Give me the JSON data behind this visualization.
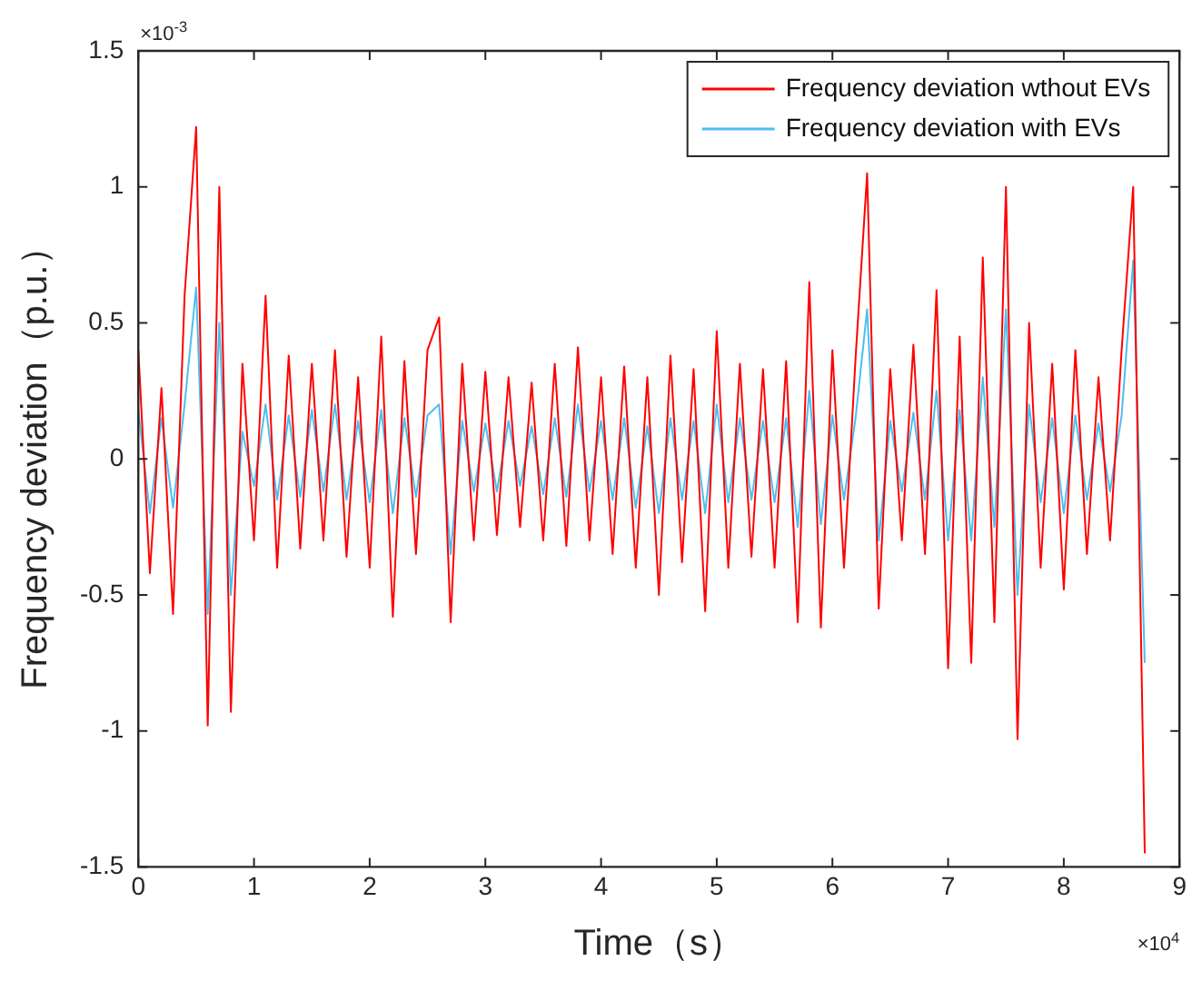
{
  "chart_data": {
    "type": "line",
    "xlabel": "Time（s）",
    "ylabel": "Frequency deviation（p.u.）",
    "x": [
      0,
      0.1,
      0.2,
      0.3,
      0.4,
      0.5,
      0.6,
      0.7,
      0.8,
      0.9,
      1,
      1.1,
      1.2,
      1.3,
      1.4,
      1.5,
      1.6,
      1.7,
      1.8,
      1.9,
      2,
      2.1,
      2.2,
      2.3,
      2.4,
      2.5,
      2.6,
      2.7,
      2.8,
      2.9,
      3,
      3.1,
      3.2,
      3.3,
      3.4,
      3.5,
      3.6,
      3.7,
      3.8,
      3.9,
      4,
      4.1,
      4.2,
      4.3,
      4.4,
      4.5,
      4.6,
      4.7,
      4.8,
      4.9,
      5,
      5.1,
      5.2,
      5.3,
      5.4,
      5.5,
      5.6,
      5.7,
      5.8,
      5.9,
      6,
      6.1,
      6.2,
      6.3,
      6.4,
      6.5,
      6.6,
      6.7,
      6.8,
      6.9,
      7,
      7.1,
      7.2,
      7.3,
      7.4,
      7.5,
      7.6,
      7.7,
      7.8,
      7.9,
      8,
      8.1,
      8.2,
      8.3,
      8.4,
      8.5,
      8.6,
      8.7
    ],
    "series": [
      {
        "name": "Frequency deviation wthout EVs",
        "color": "#ff0000",
        "values": [
          0.4,
          -0.42,
          0.26,
          -0.57,
          0.6,
          1.22,
          -0.98,
          1.0,
          -0.93,
          0.35,
          -0.3,
          0.6,
          -0.4,
          0.38,
          -0.33,
          0.35,
          -0.3,
          0.4,
          -0.36,
          0.3,
          -0.4,
          0.45,
          -0.58,
          0.36,
          -0.35,
          0.4,
          0.52,
          -0.6,
          0.35,
          -0.3,
          0.32,
          -0.28,
          0.3,
          -0.25,
          0.28,
          -0.3,
          0.35,
          -0.32,
          0.41,
          -0.3,
          0.3,
          -0.35,
          0.34,
          -0.4,
          0.3,
          -0.5,
          0.38,
          -0.38,
          0.33,
          -0.56,
          0.47,
          -0.4,
          0.35,
          -0.36,
          0.33,
          -0.4,
          0.36,
          -0.6,
          0.65,
          -0.62,
          0.4,
          -0.4,
          0.37,
          1.05,
          -0.55,
          0.33,
          -0.3,
          0.42,
          -0.35,
          0.62,
          -0.77,
          0.45,
          -0.75,
          0.74,
          -0.6,
          1.0,
          -1.03,
          0.5,
          -0.4,
          0.35,
          -0.48,
          0.4,
          -0.35,
          0.3,
          -0.3,
          0.4,
          1.0,
          -1.45
        ]
      },
      {
        "name": "Frequency deviation with EVs",
        "color": "#4dbeee",
        "values": [
          0.18,
          -0.2,
          0.15,
          -0.18,
          0.2,
          0.63,
          -0.57,
          0.5,
          -0.5,
          0.1,
          -0.1,
          0.2,
          -0.15,
          0.16,
          -0.14,
          0.18,
          -0.12,
          0.2,
          -0.15,
          0.14,
          -0.16,
          0.18,
          -0.2,
          0.15,
          -0.14,
          0.16,
          0.2,
          -0.35,
          0.14,
          -0.12,
          0.13,
          -0.12,
          0.14,
          -0.1,
          0.12,
          -0.13,
          0.15,
          -0.14,
          0.2,
          -0.12,
          0.14,
          -0.15,
          0.15,
          -0.18,
          0.12,
          -0.2,
          0.15,
          -0.15,
          0.14,
          -0.2,
          0.2,
          -0.16,
          0.15,
          -0.15,
          0.14,
          -0.16,
          0.15,
          -0.25,
          0.25,
          -0.24,
          0.16,
          -0.15,
          0.15,
          0.55,
          -0.3,
          0.14,
          -0.12,
          0.17,
          -0.15,
          0.25,
          -0.3,
          0.18,
          -0.3,
          0.3,
          -0.25,
          0.55,
          -0.5,
          0.2,
          -0.16,
          0.15,
          -0.2,
          0.16,
          -0.15,
          0.13,
          -0.12,
          0.16,
          0.73,
          -0.75
        ]
      }
    ],
    "xlim": [
      0,
      9
    ],
    "xticks": [
      0,
      1,
      2,
      3,
      4,
      5,
      6,
      7,
      8,
      9
    ],
    "ylim": [
      -1.5,
      1.5
    ],
    "yticks": [
      -1.5,
      -1,
      -0.5,
      0,
      0.5,
      1,
      1.5
    ],
    "annotations": [
      "×10$^{-3}$",
      "×10$^{4}$"
    ],
    "legend": "top right",
    "grid": false,
    "marker": "none",
    "line_style": "solid"
  }
}
